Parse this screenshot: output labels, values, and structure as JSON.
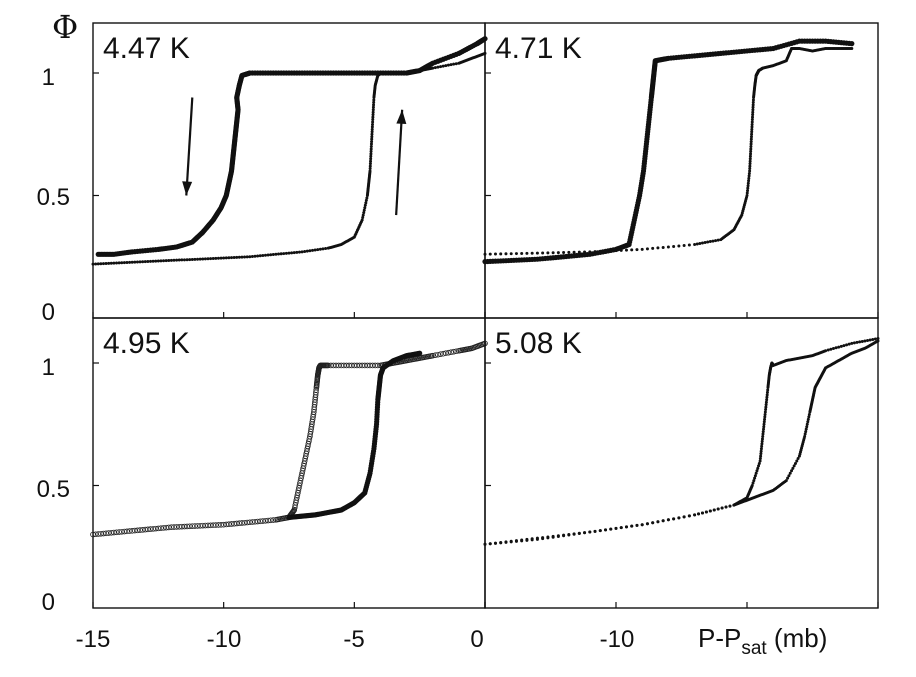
{
  "chart_data": {
    "type": "scatter",
    "y_axis_symbol": "Φ",
    "x_axis_label": {
      "main": "P-P",
      "sub": "sat",
      "unit": " (mb)"
    },
    "x_ticks_left": [
      "-15",
      "-10",
      "-5",
      "0"
    ],
    "x_ticks_right": [
      "-10"
    ],
    "y_ticks": [
      "0",
      "0.5",
      "1"
    ],
    "panels": [
      {
        "label": "4.47 K",
        "xlim": [
          -15,
          0
        ],
        "ylim": [
          0,
          1.15
        ],
        "arrows": [
          {
            "direction": "down",
            "x": -11.2,
            "y_from": 0.9,
            "y_to": 0.5
          },
          {
            "direction": "up",
            "x": -3.4,
            "y_from": 0.42,
            "y_to": 0.85
          }
        ],
        "series": [
          {
            "marker": "filled",
            "x": [
              -14.8,
              -14.2,
              -13.5,
              -12.5,
              -11.8,
              -11.2,
              -10.8,
              -10.4,
              -10.1,
              -9.9,
              -9.8,
              -9.7,
              -9.65,
              -9.6,
              -9.55,
              -9.5,
              -9.45,
              -9.5,
              -9.4,
              -9.3,
              -9.0,
              -8.0,
              -7.0,
              -6.0,
              -5.0,
              -4.0,
              -3.0,
              -2.5,
              -2.0,
              -1.0,
              -0.3,
              0.0
            ],
            "y": [
              0.26,
              0.26,
              0.27,
              0.28,
              0.29,
              0.31,
              0.35,
              0.4,
              0.45,
              0.5,
              0.55,
              0.6,
              0.65,
              0.7,
              0.75,
              0.8,
              0.85,
              0.9,
              0.95,
              0.99,
              1.0,
              1.0,
              1.0,
              1.0,
              1.0,
              1.0,
              1.0,
              1.01,
              1.04,
              1.08,
              1.12,
              1.14
            ]
          },
          {
            "marker": "small",
            "x": [
              -15.0,
              -14.0,
              -13.0,
              -12.0,
              -11.0,
              -10.0,
              -9.0,
              -8.0,
              -7.0,
              -6.0,
              -5.5,
              -5.0,
              -4.7,
              -4.5,
              -4.45,
              -4.4,
              -4.35,
              -4.3,
              -4.25,
              -4.2,
              -4.1,
              -4.0,
              -3.5,
              -3.0,
              -2.5,
              -2.0,
              -1.0,
              -0.5,
              0.0
            ],
            "y": [
              0.22,
              0.225,
              0.23,
              0.235,
              0.24,
              0.245,
              0.25,
              0.26,
              0.27,
              0.285,
              0.3,
              0.33,
              0.4,
              0.5,
              0.55,
              0.6,
              0.7,
              0.8,
              0.9,
              0.95,
              0.99,
              1.0,
              1.0,
              1.0,
              1.01,
              1.02,
              1.04,
              1.06,
              1.08
            ]
          }
        ]
      },
      {
        "label": "4.71 K",
        "xlim": [
          -15,
          0
        ],
        "ylim": [
          0,
          1.15
        ],
        "series": [
          {
            "marker": "filled",
            "x": [
              -15.0,
              -14.0,
              -13.0,
              -12.0,
              -11.0,
              -10.0,
              -9.5,
              -9.3,
              -9.1,
              -8.95,
              -8.85,
              -8.75,
              -8.65,
              -8.6,
              -8.55,
              -8.5,
              -8.0,
              -7.0,
              -6.0,
              -5.0,
              -4.0,
              -3.0,
              -2.0,
              -1.0
            ],
            "y": [
              0.23,
              0.235,
              0.24,
              0.25,
              0.26,
              0.28,
              0.3,
              0.4,
              0.5,
              0.6,
              0.7,
              0.8,
              0.9,
              0.95,
              1.0,
              1.05,
              1.06,
              1.07,
              1.08,
              1.09,
              1.1,
              1.13,
              1.13,
              1.12
            ]
          },
          {
            "marker": "small",
            "x": [
              -15.0,
              -13.0,
              -11.0,
              -9.0,
              -7.0,
              -6.0,
              -5.5,
              -5.2,
              -5.0,
              -4.9,
              -4.85,
              -4.8,
              -4.75,
              -4.7,
              -4.65,
              -4.6,
              -4.55,
              -4.4,
              -4.0,
              -3.5,
              -3.3,
              -3.0,
              -2.5,
              -2.0,
              -1.5,
              -1.0
            ],
            "y": [
              0.26,
              0.265,
              0.27,
              0.28,
              0.3,
              0.32,
              0.36,
              0.42,
              0.5,
              0.6,
              0.7,
              0.8,
              0.9,
              0.95,
              0.99,
              1.0,
              1.01,
              1.02,
              1.03,
              1.05,
              1.1,
              1.1,
              1.09,
              1.1,
              1.1,
              1.1
            ]
          }
        ]
      },
      {
        "label": "4.95 K",
        "xlim": [
          -15,
          0
        ],
        "ylim": [
          0,
          1.15
        ],
        "series": [
          {
            "marker": "open",
            "x": [
              -15.0,
              -14.0,
              -13.0,
              -12.0,
              -11.0,
              -10.0,
              -9.0,
              -8.0,
              -7.5,
              -7.3,
              -7.1,
              -6.9,
              -6.7,
              -6.55,
              -6.45,
              -6.4,
              -6.35,
              -6.3,
              -6.0,
              -5.0,
              -4.0,
              -3.5,
              -3.0,
              -2.5,
              -2.0,
              -1.0,
              -0.5,
              0.0
            ],
            "y": [
              0.3,
              0.31,
              0.32,
              0.33,
              0.335,
              0.34,
              0.35,
              0.36,
              0.37,
              0.4,
              0.5,
              0.6,
              0.7,
              0.8,
              0.9,
              0.95,
              0.98,
              0.99,
              0.99,
              0.99,
              0.99,
              1.0,
              1.01,
              1.02,
              1.03,
              1.05,
              1.06,
              1.08
            ]
          },
          {
            "marker": "filled",
            "x": [
              -7.5,
              -7.0,
              -6.5,
              -6.0,
              -5.5,
              -5.0,
              -4.6,
              -4.4,
              -4.25,
              -4.15,
              -4.1,
              -4.05,
              -4.0,
              -3.9,
              -3.5,
              -3.0,
              -2.5
            ],
            "y": [
              0.37,
              0.375,
              0.38,
              0.39,
              0.4,
              0.43,
              0.47,
              0.55,
              0.65,
              0.75,
              0.85,
              0.9,
              0.95,
              0.98,
              1.01,
              1.03,
              1.04
            ]
          }
        ]
      },
      {
        "label": "5.08 K",
        "xlim": [
          -15,
          0
        ],
        "ylim": [
          0,
          1.15
        ],
        "series": [
          {
            "marker": "small",
            "x": [
              -15.0,
              -13.0,
              -11.0,
              -9.0,
              -7.0,
              -5.5,
              -5.0,
              -4.8,
              -4.5,
              -4.4,
              -4.3,
              -4.2,
              -4.15,
              -4.1,
              -4.05,
              -4.0,
              -3.5,
              -3.0,
              -2.5,
              -2.0,
              -1.0,
              0.0
            ],
            "y": [
              0.26,
              0.28,
              0.31,
              0.34,
              0.38,
              0.42,
              0.45,
              0.5,
              0.6,
              0.7,
              0.8,
              0.9,
              0.95,
              0.98,
              1.0,
              0.99,
              1.01,
              1.02,
              1.03,
              1.05,
              1.08,
              1.1
            ]
          },
          {
            "marker": "small",
            "x": [
              -15.0,
              -13.0,
              -11.0,
              -9.0,
              -7.0,
              -5.5,
              -5.0,
              -4.5,
              -4.0,
              -3.5,
              -3.0,
              -2.8,
              -2.6,
              -2.5,
              -2.4,
              -2.2,
              -2.0,
              -1.5,
              -1.0,
              -0.5,
              0.0
            ],
            "y": [
              0.26,
              0.285,
              0.31,
              0.34,
              0.38,
              0.42,
              0.44,
              0.46,
              0.48,
              0.52,
              0.62,
              0.7,
              0.8,
              0.85,
              0.9,
              0.94,
              0.98,
              1.01,
              1.04,
              1.06,
              1.09
            ]
          }
        ]
      }
    ]
  }
}
